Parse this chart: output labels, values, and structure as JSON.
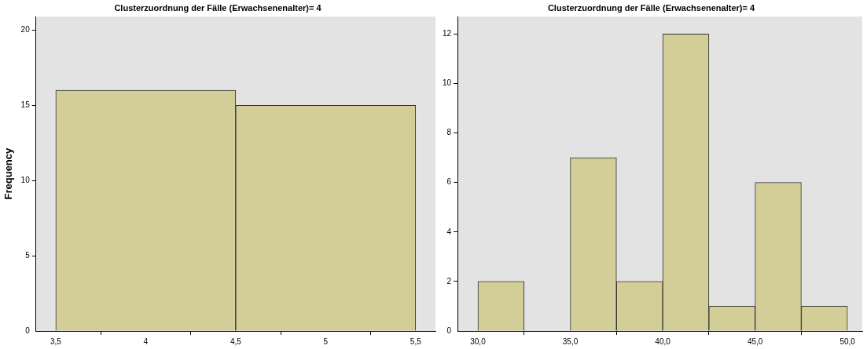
{
  "chart_data": [
    {
      "type": "histogram",
      "title": "Clusterzuordnung der Fälle (Erwachsenenalter)= 4",
      "ylabel": "Frequency",
      "bins": [
        3.5,
        4.5,
        5.5
      ],
      "values": [
        16,
        15
      ],
      "color": "#d3ce97",
      "xlim": [
        3.39,
        5.61
      ],
      "xticks": [
        {
          "value": 3.5,
          "label": "3,5"
        },
        4,
        {
          "value": 4.5,
          "label": "4,5"
        },
        5,
        {
          "value": 5.5,
          "label": "5,5"
        }
      ],
      "ylim": [
        0,
        20.9
      ],
      "yticks": [
        0,
        5,
        10,
        15,
        20
      ]
    },
    {
      "type": "histogram",
      "title": "Clusterzuordnung der Fälle (Erwachsenenalter)= 4",
      "bins": [
        30,
        32.5,
        35,
        37.5,
        40,
        42.5,
        45,
        47.5,
        50
      ],
      "values": [
        2,
        0,
        7,
        2,
        12,
        1,
        6,
        1
      ],
      "color": "#d3ce97",
      "xlim": [
        28.9,
        50.8
      ],
      "xticks": [
        {
          "value": 30,
          "label": "30,0"
        },
        {
          "value": 35,
          "label": "35,0"
        },
        {
          "value": 40,
          "label": "40,0"
        },
        {
          "value": 45,
          "label": "45,0"
        },
        {
          "value": 50,
          "label": "50,0"
        }
      ],
      "ylim": [
        0,
        12.7
      ],
      "yticks": [
        0,
        2,
        4,
        6,
        8,
        10,
        12
      ]
    }
  ]
}
